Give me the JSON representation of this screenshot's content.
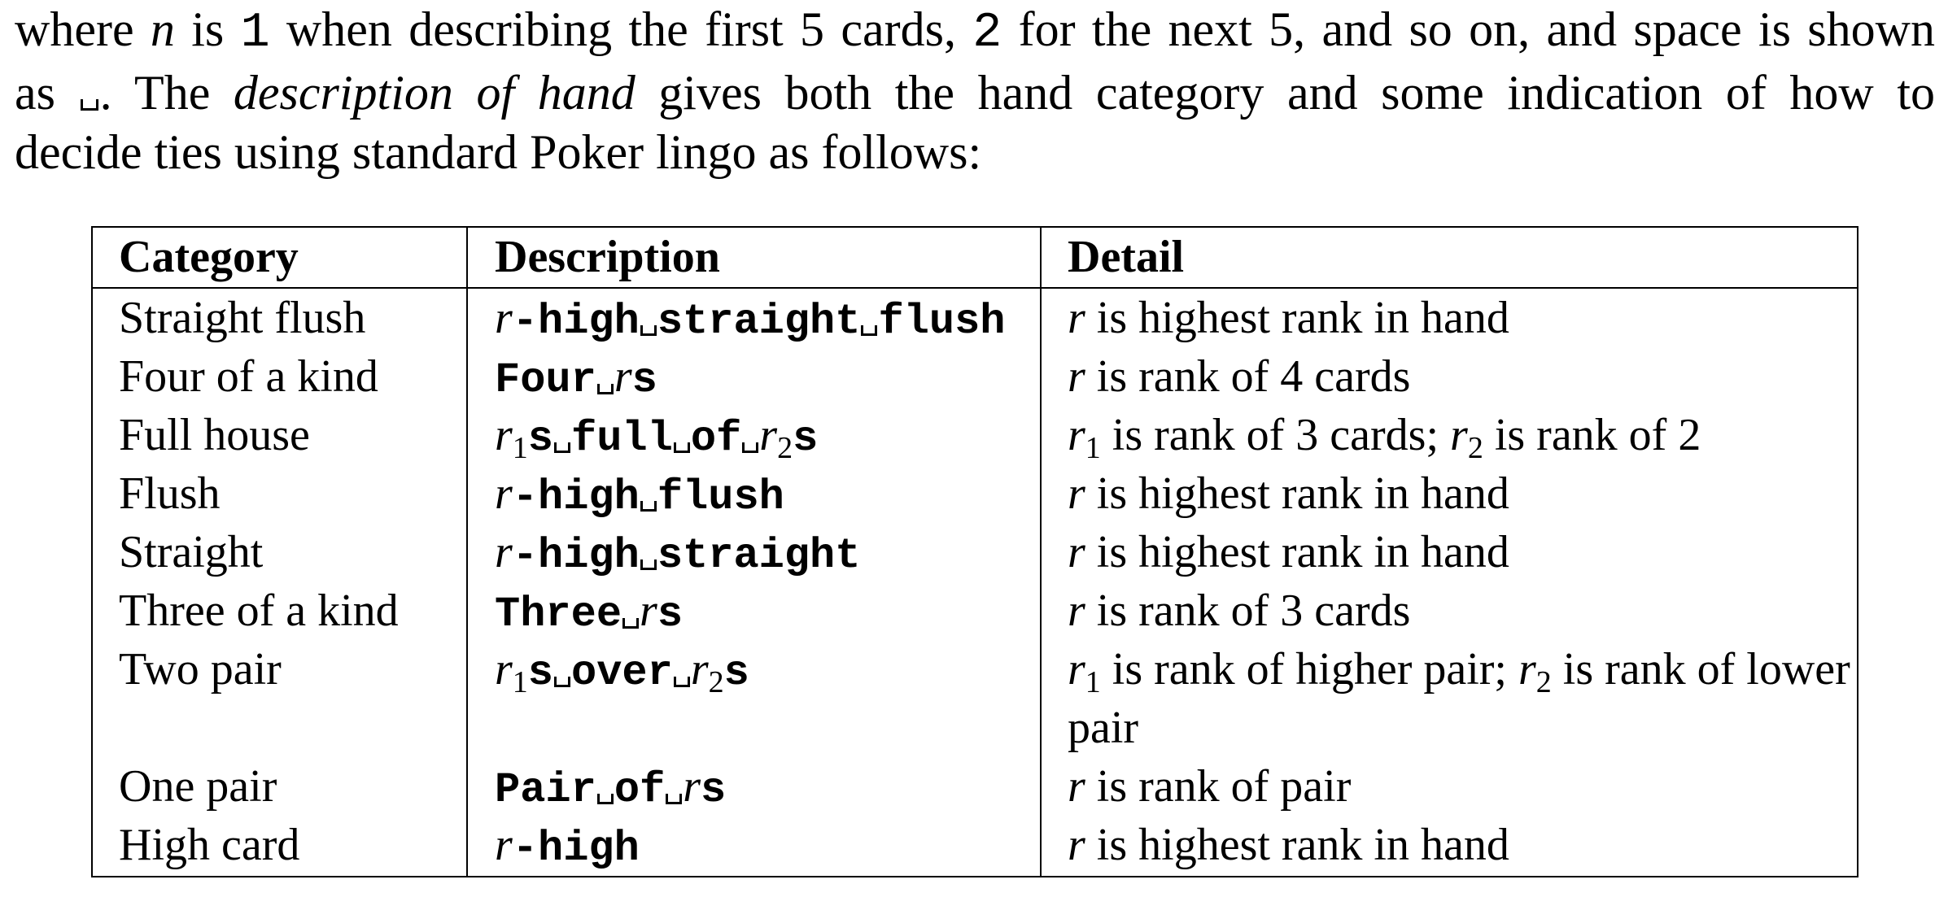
{
  "intro": {
    "line1_a": "where ",
    "line1_n": "n",
    "line1_b": " is ",
    "line1_one": "1",
    "line1_c": " when describing the first 5 cards, ",
    "line1_two": "2",
    "line1_d": " for the next 5, and so on, and space is shown",
    "line2_a": "as ",
    "line2_b": ". The ",
    "line2_italic": "description of hand",
    "line2_c": " gives both the hand category and some indication of how to",
    "line3": "decide ties using standard Poker lingo as follows:"
  },
  "table": {
    "headers": {
      "category": "Category",
      "description": "Description",
      "detail": "Detail"
    },
    "rows": [
      {
        "category": "Straight flush",
        "description": [
          {
            "v": "r"
          },
          {
            "m": "-high"
          },
          {
            "s": true
          },
          {
            "m": "straight"
          },
          {
            "s": true
          },
          {
            "m": "flush"
          }
        ],
        "detail": [
          {
            "v": "r"
          },
          {
            "t": " is highest rank in hand"
          }
        ]
      },
      {
        "category": "Four of a kind",
        "description": [
          {
            "m": "Four"
          },
          {
            "s": true
          },
          {
            "v": "r"
          },
          {
            "m": "s"
          }
        ],
        "detail": [
          {
            "v": "r"
          },
          {
            "t": " is rank of 4 cards"
          }
        ]
      },
      {
        "category": "Full house",
        "description": [
          {
            "v": "r",
            "sub": "1"
          },
          {
            "m": "s"
          },
          {
            "s": true
          },
          {
            "m": "full"
          },
          {
            "s": true
          },
          {
            "m": "of"
          },
          {
            "s": true
          },
          {
            "v": "r",
            "sub": "2"
          },
          {
            "m": "s"
          }
        ],
        "detail": [
          {
            "v": "r",
            "sub": "1"
          },
          {
            "t": " is rank of 3 cards; "
          },
          {
            "v": "r",
            "sub": "2"
          },
          {
            "t": " is rank of 2"
          }
        ]
      },
      {
        "category": "Flush",
        "description": [
          {
            "v": "r"
          },
          {
            "m": "-high"
          },
          {
            "s": true
          },
          {
            "m": "flush"
          }
        ],
        "detail": [
          {
            "v": "r"
          },
          {
            "t": " is highest rank in hand"
          }
        ]
      },
      {
        "category": "Straight",
        "description": [
          {
            "v": "r"
          },
          {
            "m": "-high"
          },
          {
            "s": true
          },
          {
            "m": "straight"
          }
        ],
        "detail": [
          {
            "v": "r"
          },
          {
            "t": " is highest rank in hand"
          }
        ]
      },
      {
        "category": "Three of a kind",
        "description": [
          {
            "m": "Three"
          },
          {
            "s": true
          },
          {
            "v": "r"
          },
          {
            "m": "s"
          }
        ],
        "detail": [
          {
            "v": "r"
          },
          {
            "t": " is rank of 3 cards"
          }
        ]
      },
      {
        "category": "Two pair",
        "description": [
          {
            "v": "r",
            "sub": "1"
          },
          {
            "m": "s"
          },
          {
            "s": true
          },
          {
            "m": "over"
          },
          {
            "s": true
          },
          {
            "v": "r",
            "sub": "2"
          },
          {
            "m": "s"
          }
        ],
        "detail": [
          {
            "v": "r",
            "sub": "1"
          },
          {
            "t": " is rank of higher pair; "
          },
          {
            "v": "r",
            "sub": "2"
          },
          {
            "t": " is rank of lower pair"
          }
        ]
      },
      {
        "category": "One pair",
        "description": [
          {
            "m": "Pair"
          },
          {
            "s": true
          },
          {
            "m": "of"
          },
          {
            "s": true
          },
          {
            "v": "r"
          },
          {
            "m": "s"
          }
        ],
        "detail": [
          {
            "v": "r"
          },
          {
            "t": " is rank of pair"
          }
        ]
      },
      {
        "category": "High card",
        "description": [
          {
            "v": "r"
          },
          {
            "m": "-high"
          }
        ],
        "detail": [
          {
            "v": "r"
          },
          {
            "t": " is highest rank in hand"
          }
        ]
      }
    ]
  }
}
